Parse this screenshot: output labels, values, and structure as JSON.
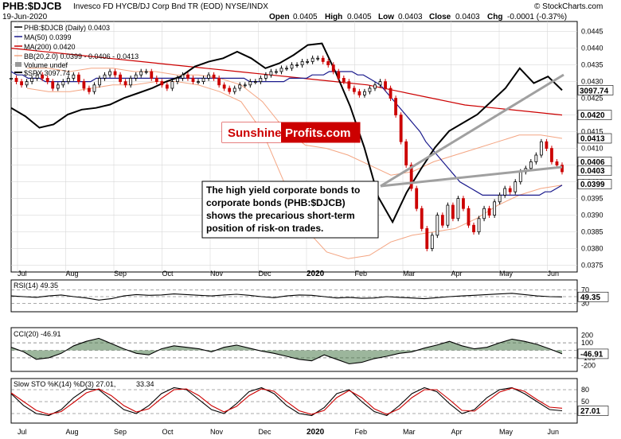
{
  "header": {
    "symbol": "PHB:$DJCB",
    "description": "Invesco FD HYCB/DJ Corp Bnd TR (EOD)  NYSE/INDX",
    "copyright": "© StockCharts.com",
    "date": "19-Jun-2020",
    "ohlc": {
      "open_label": "Open",
      "open": "0.0405",
      "high_label": "High",
      "high": "0.0405",
      "low_label": "Low",
      "low": "0.0403",
      "close_label": "Close",
      "close": "0.0403",
      "chg_label": "Chg",
      "chg": "-0.0001 (-0.37%)"
    }
  },
  "legend": {
    "main": "PHB:$DJCB (Daily) 0.0403",
    "ma50": "MA(50) 0.0399",
    "ma200": "MA(200) 0.0420",
    "bb": "BB(20,2.0) 0.0399 - 0.0406 - 0.0413",
    "volume": "Volume undef",
    "spx": "$SPX 3097.74"
  },
  "colors": {
    "price_up": "#000000",
    "price_down": "#cc0000",
    "ma50": "#1a1a8c",
    "ma200": "#cc0000",
    "bb": "#f4a582",
    "spx": "#000000",
    "trendline": "#a0a0a0",
    "grid": "#d9d9d9",
    "brand_red": "#cc0000",
    "osc_fill": "#4a7a4a",
    "osc_fill_neg": "#8b3a3a",
    "stoch_k": "#000000",
    "stoch_d": "#cc0000"
  },
  "months": [
    "Jul",
    "Aug",
    "Sep",
    "Oct",
    "Nov",
    "Dec",
    "2020",
    "Feb",
    "Mar",
    "Apr",
    "May",
    "Jun"
  ],
  "logo": {
    "part1": "Sunshine",
    "part2": "Profits.com"
  },
  "annotation": [
    "The high yield corporate bonds to",
    "corporate bonds (PHB:$DJCB)",
    "shows the precarious short-term",
    "position of risk-on trades."
  ],
  "right_axis": {
    "ticks": [
      "0.0445",
      "0.0440",
      "0.0435",
      "0.0430",
      "0.0425",
      "0.0420",
      "0.0415",
      "0.0410",
      "0.0405",
      "0.0400",
      "0.0395",
      "0.0390",
      "0.0385",
      "0.0380",
      "0.0375"
    ],
    "spx_badge": "3097.74",
    "ma200_badge": "0.0420",
    "bb_upper_badge": "0.0413",
    "bb_mid_badge": "0.0406",
    "close_badge": "0.0403",
    "ma50_badge": "0.0399"
  },
  "rsi": {
    "label": "RSI(14) 49.35",
    "value": 49.35,
    "ticks": [
      "70",
      "30"
    ],
    "badge": "49.35"
  },
  "cci": {
    "label": "CCI(20) -46.91",
    "value": -46.91,
    "ticks": [
      "200",
      "100",
      "-100",
      "-200"
    ],
    "badge": "-46.91"
  },
  "stoch": {
    "label_k": "Slow STO %K(14) %D(3) 27.01,",
    "label_d": "33.34",
    "ticks": [
      "80",
      "50",
      "20"
    ],
    "badge": "27.01"
  },
  "chart_data": {
    "type": "candlestick",
    "title": "PHB:$DJCB",
    "ylim": [
      0.0373,
      0.0448
    ],
    "y_scale": "linear",
    "grid": true,
    "close": [
      0.0431,
      0.043,
      0.0429,
      0.043,
      0.0431,
      0.0432,
      0.0431,
      0.043,
      0.0428,
      0.0429,
      0.043,
      0.0431,
      0.0432,
      0.043,
      0.0428,
      0.0427,
      0.0429,
      0.0431,
      0.0432,
      0.0433,
      0.0432,
      0.043,
      0.0429,
      0.0431,
      0.0432,
      0.0433,
      0.0433,
      0.0431,
      0.043,
      0.0429,
      0.0428,
      0.043,
      0.0431,
      0.0432,
      0.0431,
      0.043,
      0.043,
      0.0431,
      0.0432,
      0.0431,
      0.0429,
      0.0428,
      0.0427,
      0.0428,
      0.0429,
      0.0429,
      0.043,
      0.043,
      0.0431,
      0.0432,
      0.0433,
      0.0433,
      0.0434,
      0.0434,
      0.0435,
      0.0435,
      0.0436,
      0.0436,
      0.0437,
      0.0437,
      0.0436,
      0.0435,
      0.0433,
      0.0431,
      0.043,
      0.0428,
      0.0427,
      0.0426,
      0.0427,
      0.0428,
      0.0429,
      0.043,
      0.0428,
      0.0425,
      0.042,
      0.0412,
      0.0405,
      0.0398,
      0.0392,
      0.0386,
      0.038,
      0.0384,
      0.039,
      0.0387,
      0.0393,
      0.0389,
      0.0395,
      0.0392,
      0.0387,
      0.0385,
      0.0389,
      0.0392,
      0.039,
      0.0394,
      0.0396,
      0.0398,
      0.0397,
      0.04,
      0.0403,
      0.0404,
      0.0406,
      0.0408,
      0.0412,
      0.041,
      0.0406,
      0.0405,
      0.0403
    ],
    "ma50": [
      0.0433,
      0.0432,
      0.0432,
      0.0431,
      0.0431,
      0.0431,
      0.043,
      0.043,
      0.043,
      0.043,
      0.043,
      0.043,
      0.043,
      0.043,
      0.043,
      0.0431,
      0.0431,
      0.0431,
      0.0431,
      0.0431,
      0.0431,
      0.0431,
      0.0431,
      0.0431,
      0.0431,
      0.0431,
      0.0431,
      0.0431,
      0.0431,
      0.0431,
      0.0431,
      0.0431,
      0.0431,
      0.0431,
      0.0431,
      0.0431,
      0.0431,
      0.0431,
      0.0431,
      0.0431,
      0.0431,
      0.0431,
      0.043,
      0.043,
      0.043,
      0.043,
      0.043,
      0.043,
      0.043,
      0.0431,
      0.0431,
      0.0431,
      0.0431,
      0.0432,
      0.0432,
      0.0432,
      0.0433,
      0.0433,
      0.0433,
      0.0433,
      0.0433,
      0.0432,
      0.0432,
      0.0431,
      0.043,
      0.0429,
      0.0427,
      0.0425,
      0.0423,
      0.0421,
      0.0419,
      0.0417,
      0.0415,
      0.0412,
      0.041,
      0.0408,
      0.0406,
      0.0404,
      0.0402,
      0.04,
      0.0399,
      0.0398,
      0.0397,
      0.0396,
      0.0396,
      0.0396,
      0.0396,
      0.0396,
      0.0396,
      0.0396,
      0.0396,
      0.0396,
      0.0396,
      0.0396,
      0.0397,
      0.0397,
      0.0398,
      0.0399
    ],
    "ma200": [
      0.044,
      0.0439,
      0.0438,
      0.0437,
      0.0436,
      0.0435,
      0.0434,
      0.0433,
      0.0432,
      0.0431,
      0.043,
      0.0429,
      0.0427,
      0.0425,
      0.0423,
      0.0422,
      0.0421,
      0.042
    ],
    "bb_upper": [
      0.0434,
      0.0434,
      0.0433,
      0.0434,
      0.0434,
      0.0433,
      0.0433,
      0.0432,
      0.0432,
      0.0431,
      0.0429,
      0.0424,
      0.0416,
      0.0411,
      0.041,
      0.0408,
      0.0405,
      0.0402,
      0.0403,
      0.0406,
      0.0408,
      0.041,
      0.0412,
      0.0414,
      0.0414,
      0.0413
    ],
    "bb_lower": [
      0.0428,
      0.0427,
      0.0427,
      0.0428,
      0.0429,
      0.0429,
      0.043,
      0.043,
      0.0429,
      0.0427,
      0.0424,
      0.0415,
      0.04,
      0.0386,
      0.0379,
      0.0377,
      0.0378,
      0.0382,
      0.0384,
      0.0385,
      0.0386,
      0.0389,
      0.0393,
      0.0396,
      0.0398,
      0.0399
    ],
    "spx": [
      2990,
      2940,
      2870,
      2890,
      2950,
      2980,
      2990,
      3010,
      3050,
      3080,
      3110,
      3150,
      3180,
      3240,
      3270,
      3290,
      3330,
      3290,
      3230,
      3260,
      3310,
      3370,
      3380,
      3200,
      3000,
      2750,
      2450,
      2300,
      2480,
      2620,
      2750,
      2850,
      2900,
      2950,
      3030,
      3110,
      3230,
      3140,
      3180,
      3097
    ],
    "rsi": [
      52,
      50,
      48,
      52,
      55,
      50,
      46,
      40,
      44,
      52,
      56,
      54,
      55,
      58,
      56,
      54,
      52,
      55,
      57,
      54,
      50,
      47,
      52,
      55,
      54,
      50,
      46,
      48,
      45,
      46,
      50,
      48,
      46,
      44,
      47,
      50,
      52,
      54,
      56,
      58,
      60,
      56,
      52,
      50,
      49.35
    ],
    "cci": [
      40,
      -20,
      -120,
      -100,
      -40,
      60,
      120,
      160,
      90,
      20,
      -40,
      -60,
      20,
      60,
      40,
      20,
      -20,
      40,
      70,
      30,
      -10,
      -40,
      -80,
      -120,
      -140,
      -60,
      -120,
      -180,
      -160,
      -110,
      -80,
      -40,
      -20,
      30,
      70,
      120,
      60,
      20,
      40,
      100,
      150,
      120,
      80,
      20,
      -46.91
    ],
    "stoch_k": [
      70,
      40,
      20,
      15,
      30,
      60,
      82,
      80,
      55,
      30,
      20,
      40,
      70,
      85,
      80,
      55,
      30,
      20,
      45,
      75,
      85,
      70,
      40,
      20,
      15,
      35,
      70,
      80,
      50,
      25,
      15,
      40,
      70,
      85,
      75,
      45,
      20,
      30,
      60,
      80,
      85,
      70,
      50,
      30,
      27.01
    ],
    "stoch_d": [
      72,
      50,
      28,
      18,
      25,
      48,
      72,
      82,
      65,
      40,
      24,
      32,
      58,
      80,
      82,
      65,
      40,
      24,
      38,
      65,
      82,
      76,
      50,
      27,
      18,
      28,
      60,
      78,
      60,
      32,
      18,
      32,
      60,
      80,
      80,
      55,
      28,
      26,
      50,
      74,
      84,
      76,
      55,
      36,
      33.34
    ]
  }
}
